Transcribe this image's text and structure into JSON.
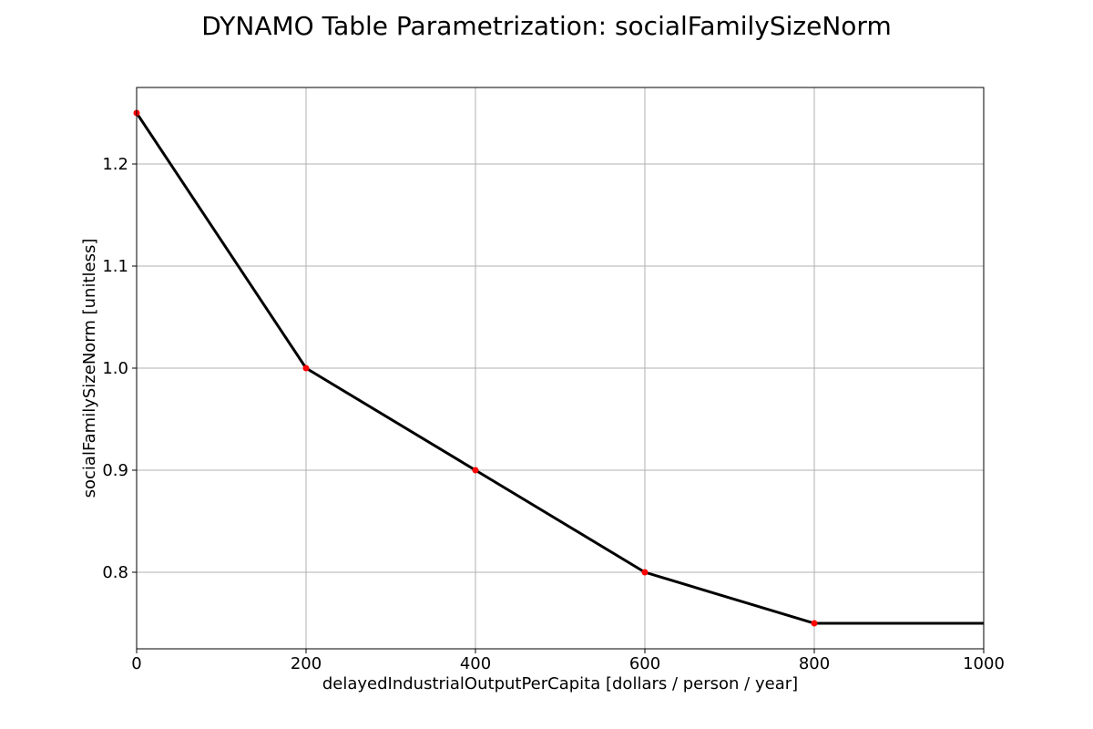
{
  "chart_data": {
    "type": "line",
    "title": "DYNAMO Table Parametrization: socialFamilySizeNorm",
    "xlabel": "delayedIndustrialOutputPerCapita [dollars / person / year]",
    "ylabel": "socialFamilySizeNorm [unitless]",
    "xlim": [
      0,
      1000
    ],
    "ylim": [
      0.725,
      1.275
    ],
    "xticks": [
      0,
      200,
      400,
      600,
      800,
      1000
    ],
    "xtick_labels": [
      "0",
      "200",
      "400",
      "600",
      "800",
      "1000"
    ],
    "yticks": [
      0.8,
      0.9,
      1.0,
      1.1,
      1.2
    ],
    "ytick_labels": [
      "0.8",
      "0.9",
      "1.0",
      "1.1",
      "1.2"
    ],
    "grid": true,
    "series": [
      {
        "type": "line",
        "color": "#000000",
        "x": [
          0,
          200,
          400,
          600,
          800,
          1000
        ],
        "y": [
          1.25,
          1.0,
          0.9,
          0.8,
          0.75,
          0.75
        ]
      },
      {
        "type": "scatter",
        "color": "#ff0000",
        "x": [
          0,
          200,
          400,
          600,
          800
        ],
        "y": [
          1.25,
          1.0,
          0.9,
          0.8,
          0.75
        ]
      }
    ]
  }
}
